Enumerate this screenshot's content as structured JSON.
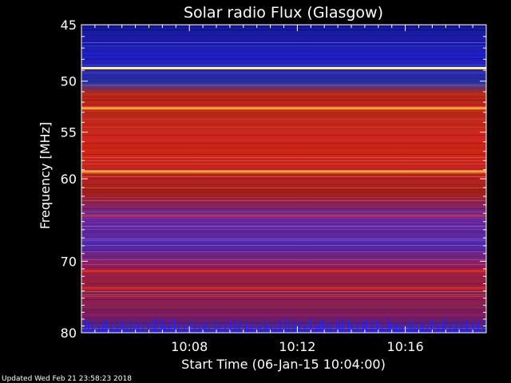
{
  "chart_data": {
    "type": "heatmap",
    "title": "Solar radio Flux (Glasgow)",
    "xlabel": "Start Time (06-Jan-15 10:04:00)",
    "ylabel": "Frequency [MHz]",
    "x_ticks": [
      "10:08",
      "10:12",
      "10:16"
    ],
    "y_ticks": [
      "45",
      "50",
      "55",
      "60",
      "70",
      "80"
    ],
    "x_range_minutes": [
      0,
      15
    ],
    "y_range_mhz": [
      45,
      80
    ],
    "y_scale": "log",
    "colormap": [
      "#00003a",
      "#1a1ab4",
      "#5a3cc8",
      "#a01e6e",
      "#c81e1e",
      "#f03c14",
      "#ffb450",
      "#ffffdc"
    ],
    "bright_bands_mhz": [
      48.8,
      52.6,
      59.2,
      64.3,
      71.3,
      73.6
    ]
  },
  "footer": {
    "updated": "Updated Wed Feb 21 23:58:23 2018"
  }
}
